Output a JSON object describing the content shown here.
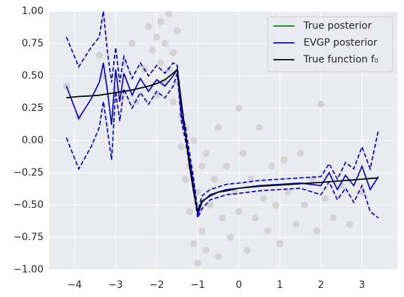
{
  "chart_data": {
    "type": "line",
    "xlim": [
      -4.62,
      3.87
    ],
    "ylim": [
      -1,
      1
    ],
    "xticks": [
      {
        "value": -4,
        "label": "−4"
      },
      {
        "value": -3,
        "label": "−3"
      },
      {
        "value": -2,
        "label": "−2"
      },
      {
        "value": -1,
        "label": "−1"
      },
      0,
      1,
      2,
      3
    ],
    "yticks": [
      {
        "value": -1,
        "label": "−1.00"
      },
      {
        "value": -0.75,
        "label": "−0.75"
      },
      {
        "value": -0.5,
        "label": "−0.50"
      },
      {
        "value": -0.25,
        "label": "−0.25"
      },
      {
        "value": 0,
        "label": "0.00"
      },
      {
        "value": 0.25,
        "label": "0.25"
      },
      {
        "value": 0.5,
        "label": "0.50"
      },
      {
        "value": 0.75,
        "label": "0.75"
      },
      {
        "value": 1,
        "label": "1.00"
      }
    ],
    "grid": true,
    "legend": "upper right",
    "scatter": {
      "color": "#d3d3d3",
      "x": [
        -4.2,
        -3.9,
        -3.4,
        -3.3,
        -3.0,
        -2.8,
        -2.6,
        -2.5,
        -2.3,
        -2.2,
        -2.1,
        -2.0,
        -2.0,
        -1.9,
        -1.9,
        -1.8,
        -1.8,
        -1.7,
        -1.7,
        -1.6,
        -1.6,
        -1.5,
        -1.5,
        -1.4,
        -1.4,
        -1.3,
        -1.3,
        -1.2,
        -1.2,
        -1.1,
        -1.1,
        -1.0,
        -1.0,
        -0.9,
        -0.9,
        -0.8,
        -0.8,
        -0.7,
        -0.6,
        -0.5,
        -0.5,
        -0.4,
        -0.3,
        -0.2,
        -0.1,
        0.0,
        0.0,
        0.1,
        0.2,
        0.3,
        0.4,
        0.5,
        0.6,
        0.7,
        0.8,
        0.9,
        1.0,
        1.1,
        1.2,
        1.4,
        1.5,
        1.6,
        1.8,
        1.9,
        2.0,
        2.1,
        2.3,
        2.5,
        2.7,
        3.0
      ],
      "y": [
        0.42,
        0.18,
        0.66,
        0.5,
        0.4,
        0.6,
        0.75,
        0.3,
        0.55,
        0.88,
        0.7,
        0.35,
        0.8,
        0.6,
        0.92,
        0.45,
        0.75,
        0.55,
        0.98,
        0.3,
        0.68,
        0.85,
        0.45,
        0.2,
        -0.05,
        0.1,
        -0.3,
        -0.2,
        -0.55,
        0.0,
        -0.8,
        -0.4,
        -0.95,
        -0.2,
        -0.7,
        -0.1,
        -0.85,
        -0.5,
        -0.3,
        0.1,
        -0.9,
        -0.6,
        -0.2,
        -0.75,
        -0.4,
        0.25,
        -0.55,
        -0.1,
        -0.85,
        -0.3,
        -0.6,
        0.1,
        -0.45,
        -0.7,
        -0.2,
        -0.5,
        -0.8,
        -0.15,
        -0.4,
        -0.65,
        -0.1,
        -0.5,
        -0.3,
        -0.7,
        0.28,
        -0.45,
        -0.6,
        -0.35,
        -0.65,
        -0.4
      ]
    },
    "x": [
      -4.2,
      -3.9,
      -3.6,
      -3.4,
      -3.3,
      -3.2,
      -3.1,
      -3.0,
      -2.9,
      -2.8,
      -2.6,
      -2.4,
      -2.2,
      -2.0,
      -1.8,
      -1.6,
      -1.5,
      -1.4,
      -1.3,
      -1.2,
      -1.1,
      -1.0,
      -0.9,
      -0.7,
      -0.5,
      -0.3,
      0,
      0.5,
      1.0,
      1.5,
      2.0,
      2.2,
      2.4,
      2.6,
      2.8,
      3.0,
      3.2,
      3.4
    ],
    "series": [
      {
        "name": "True posterior",
        "color": "#008000",
        "values": [
          0.33,
          0.34,
          0.345,
          0.35,
          0.355,
          0.36,
          0.365,
          0.37,
          0.375,
          0.38,
          0.39,
          0.405,
          0.42,
          0.44,
          0.47,
          0.52,
          0.55,
          0.3,
          0.05,
          -0.2,
          -0.4,
          -0.55,
          -0.47,
          -0.43,
          -0.4,
          -0.39,
          -0.37,
          -0.355,
          -0.345,
          -0.335,
          -0.325,
          -0.32,
          -0.315,
          -0.31,
          -0.305,
          -0.3,
          -0.295,
          -0.29
        ]
      },
      {
        "name": "EVGP posterior",
        "color": "#0000cc",
        "values": [
          0.42,
          0.17,
          0.32,
          0.45,
          0.6,
          0.38,
          0.12,
          0.55,
          0.3,
          0.52,
          0.35,
          0.48,
          0.38,
          0.47,
          0.42,
          0.5,
          0.55,
          0.2,
          0.05,
          -0.15,
          -0.35,
          -0.58,
          -0.48,
          -0.42,
          -0.4,
          -0.38,
          -0.37,
          -0.35,
          -0.34,
          -0.33,
          -0.35,
          -0.25,
          -0.38,
          -0.27,
          -0.35,
          -0.2,
          -0.38,
          -0.28
        ],
        "upper": [
          0.8,
          0.57,
          0.72,
          0.8,
          1.0,
          0.68,
          0.45,
          0.72,
          0.45,
          0.65,
          0.48,
          0.6,
          0.5,
          0.58,
          0.52,
          0.6,
          0.58,
          0.25,
          0.1,
          -0.1,
          -0.3,
          -0.55,
          -0.43,
          -0.38,
          -0.36,
          -0.34,
          -0.33,
          -0.31,
          -0.3,
          -0.29,
          -0.28,
          -0.18,
          -0.3,
          -0.17,
          -0.22,
          -0.05,
          -0.22,
          0.08
        ],
        "lower": [
          0.02,
          -0.22,
          -0.05,
          0.1,
          0.3,
          0.08,
          -0.15,
          0.38,
          0.15,
          0.4,
          0.25,
          0.37,
          0.28,
          0.38,
          0.33,
          0.42,
          0.52,
          0.15,
          0.0,
          -0.2,
          -0.4,
          -0.6,
          -0.53,
          -0.46,
          -0.44,
          -0.42,
          -0.41,
          -0.39,
          -0.38,
          -0.37,
          -0.42,
          -0.32,
          -0.46,
          -0.37,
          -0.48,
          -0.35,
          -0.55,
          -0.6
        ]
      },
      {
        "name": "True function f₀",
        "color": "#000000",
        "values": [
          0.33,
          0.34,
          0.345,
          0.35,
          0.355,
          0.36,
          0.365,
          0.37,
          0.375,
          0.38,
          0.39,
          0.405,
          0.42,
          0.44,
          0.47,
          0.52,
          0.55,
          0.3,
          0.05,
          -0.2,
          -0.4,
          -0.55,
          -0.47,
          -0.43,
          -0.4,
          -0.39,
          -0.37,
          -0.355,
          -0.345,
          -0.335,
          -0.325,
          -0.32,
          -0.315,
          -0.31,
          -0.305,
          -0.3,
          -0.295,
          -0.29
        ]
      }
    ]
  }
}
